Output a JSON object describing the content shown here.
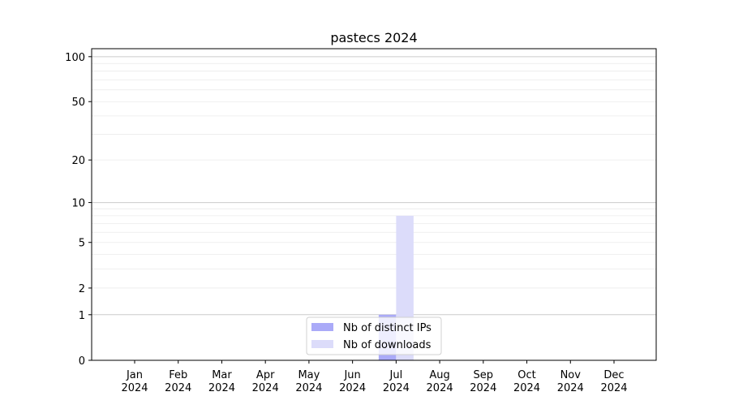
{
  "chart_data": {
    "type": "bar",
    "title": "pastecs 2024",
    "xlabel": "",
    "ylabel": "",
    "yscale": "symlog (log of 1+y)",
    "ylim": [
      0,
      113
    ],
    "yticks": [
      0,
      1,
      2,
      5,
      10,
      20,
      50,
      100
    ],
    "grid": true,
    "legend_position": "bottom-center",
    "categories": [
      "Jan\n2024",
      "Feb\n2024",
      "Mar\n2024",
      "Apr\n2024",
      "May\n2024",
      "Jun\n2024",
      "Jul\n2024",
      "Aug\n2024",
      "Sep\n2024",
      "Oct\n2024",
      "Nov\n2024",
      "Dec\n2024"
    ],
    "series": [
      {
        "name": "Nb of distinct IPs",
        "color": "#aaaaf8",
        "values": [
          0,
          0,
          0,
          0,
          0,
          0,
          1,
          0,
          0,
          0,
          0,
          0
        ]
      },
      {
        "name": "Nb of downloads",
        "color": "#dcdcfa",
        "values": [
          0,
          0,
          0,
          0,
          0,
          0,
          8,
          0,
          0,
          0,
          0,
          0
        ]
      }
    ]
  }
}
